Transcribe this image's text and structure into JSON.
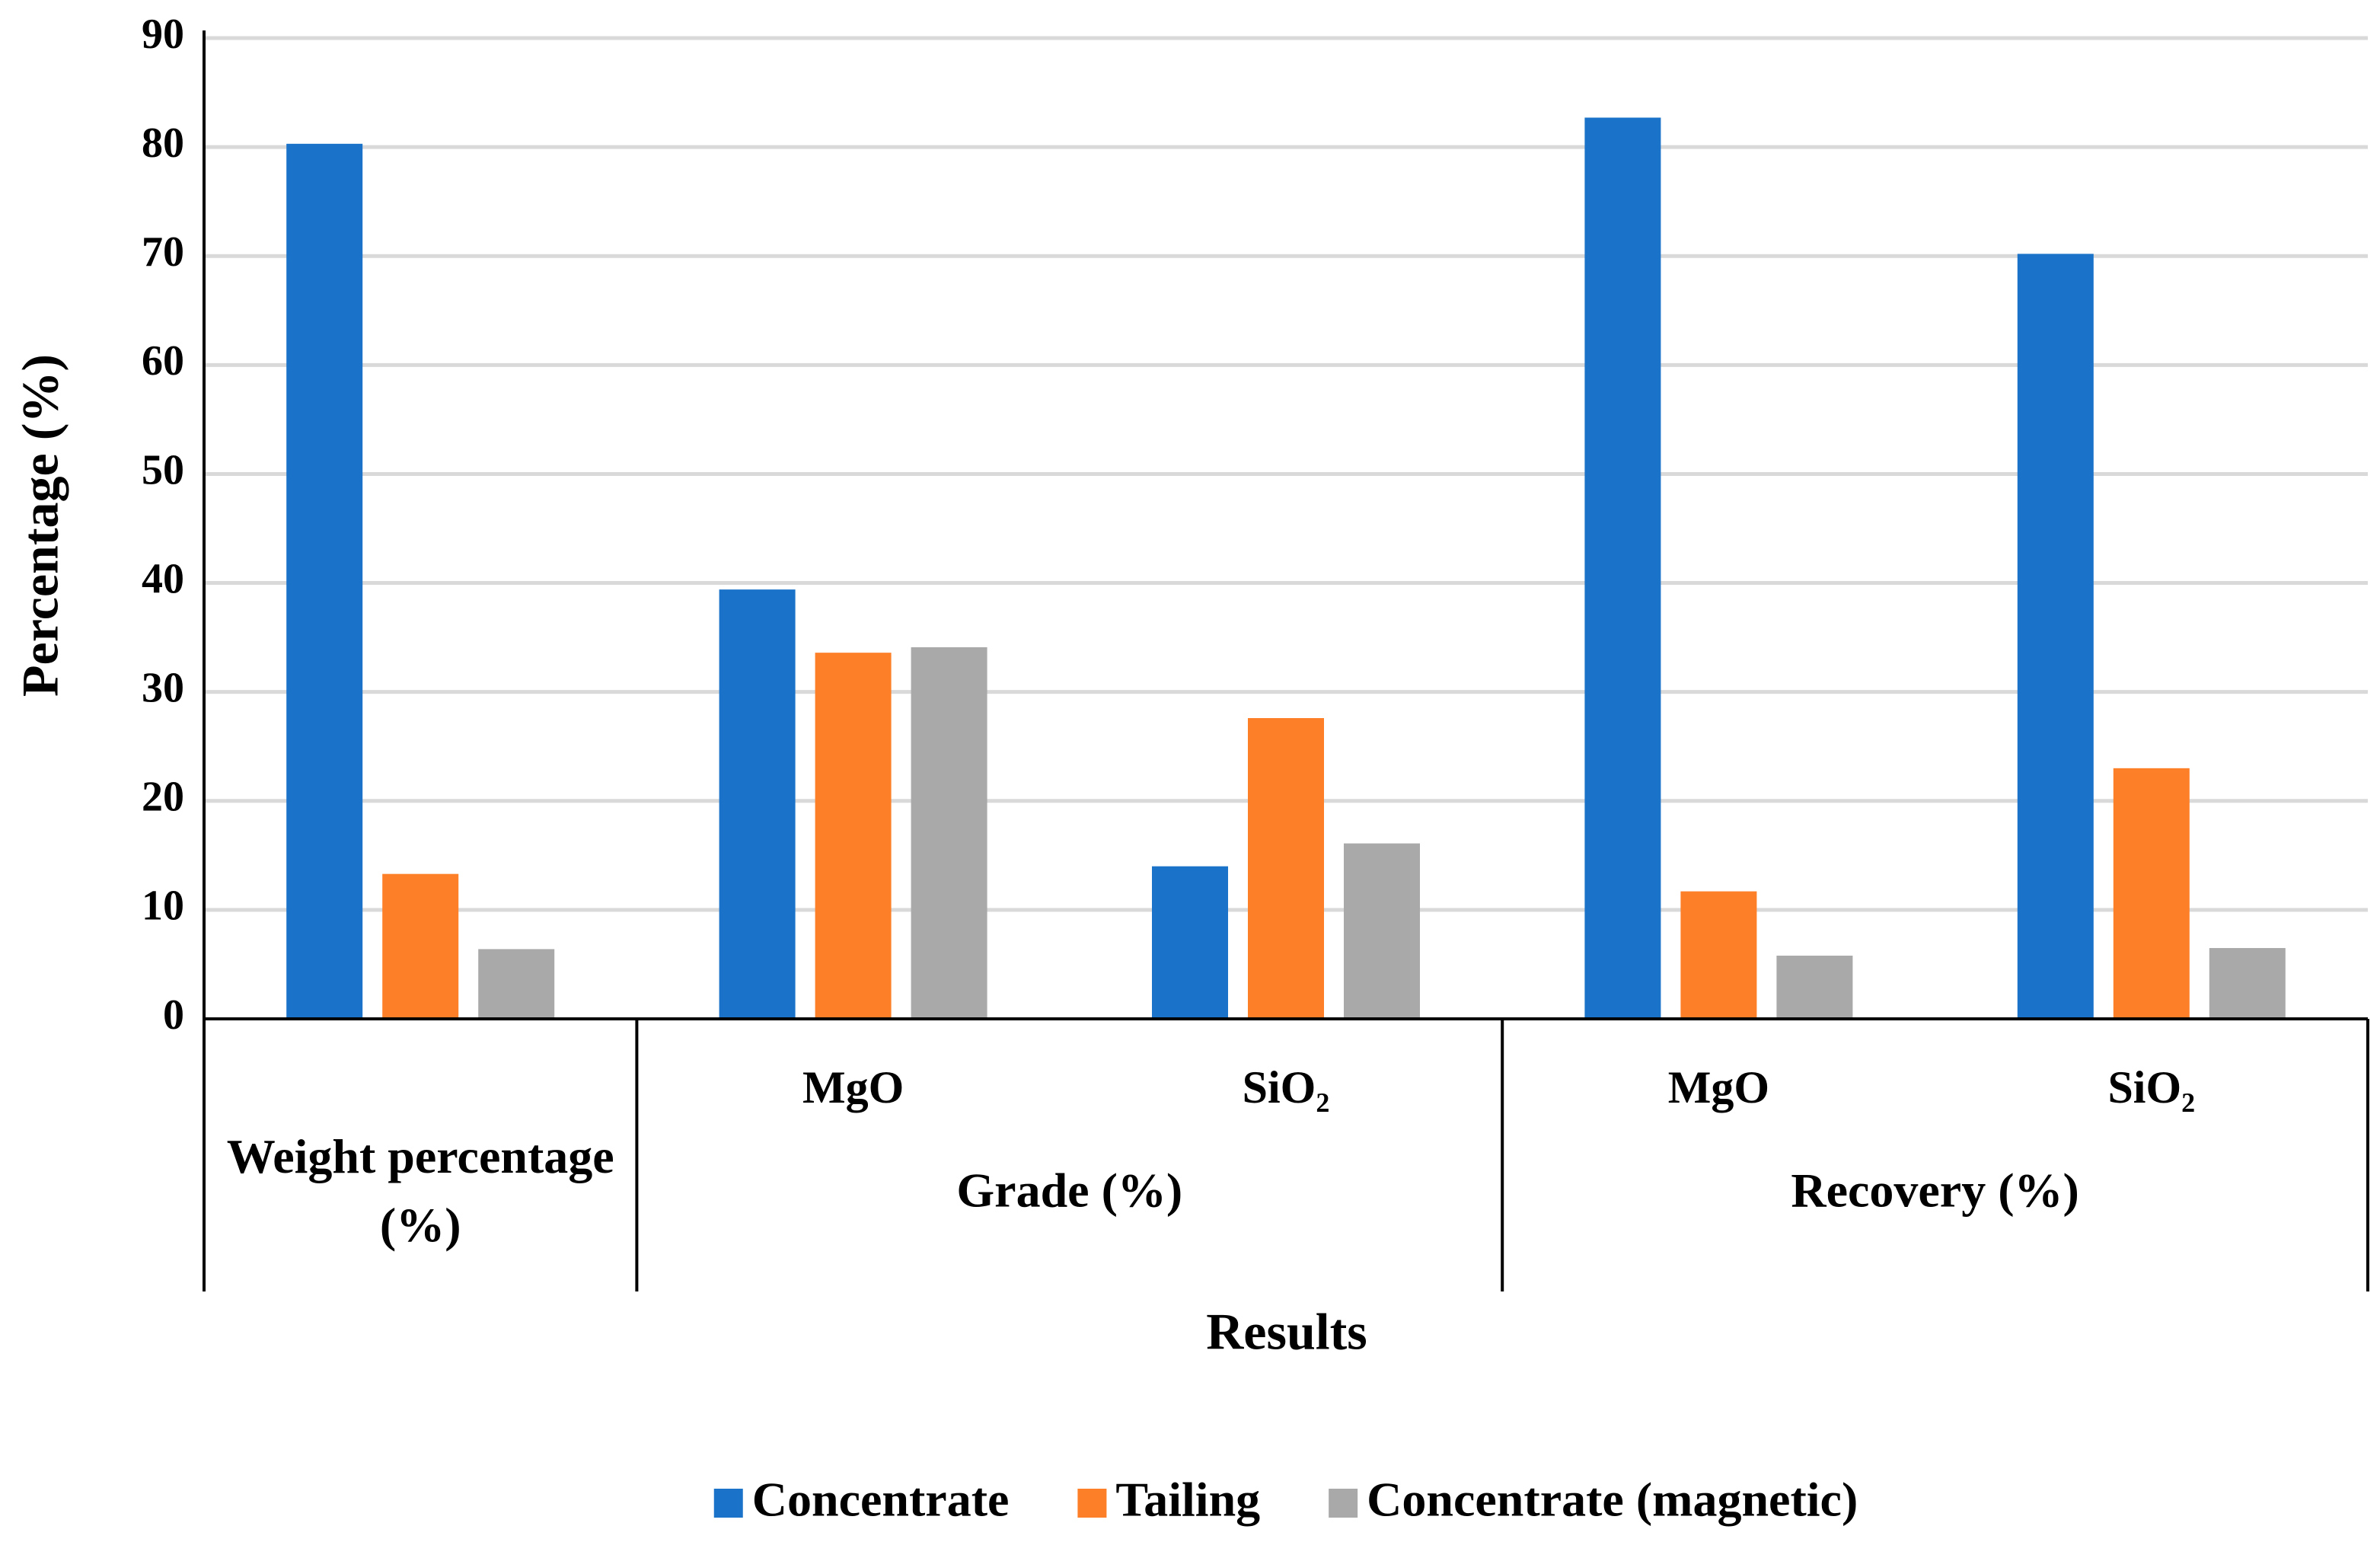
{
  "chart_data": {
    "type": "bar",
    "y_label": "Percentage (%)",
    "x_label": "Results",
    "categories": [
      null,
      "MgO",
      "SiO₂",
      "MgO",
      "SiO₂"
    ],
    "group_labels": [
      "Weight percentage (%)",
      "Grade (%)",
      "Recovery (%)"
    ],
    "group_sizes": [
      1,
      2,
      2
    ],
    "series": [
      {
        "name": "Concentrate",
        "color": "#1a73c9",
        "values": [
          80.3,
          39.4,
          14.0,
          82.7,
          70.2
        ]
      },
      {
        "name": "Tailing",
        "color": "#fd7f27",
        "values": [
          13.3,
          33.6,
          27.6,
          11.7,
          23.0
        ]
      },
      {
        "name": "Concentrate (magnetic)",
        "color": "#a9a9a9",
        "values": [
          6.4,
          34.1,
          16.1,
          5.8,
          6.5
        ]
      }
    ],
    "ylim": [
      0,
      90
    ],
    "yticks": [
      0,
      10,
      20,
      30,
      40,
      50,
      60,
      70,
      80,
      90
    ],
    "grid": true,
    "legend": "bottom"
  }
}
